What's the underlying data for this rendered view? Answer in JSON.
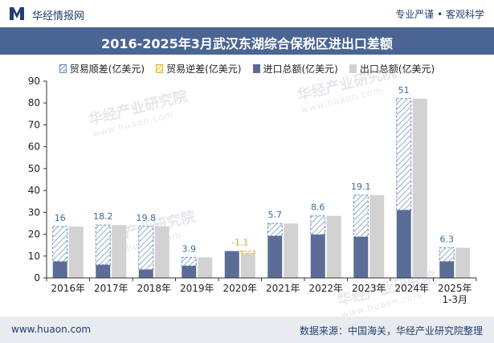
{
  "header": {
    "brand": "华经情报网",
    "slogan": "专业严谨 • 客观科学"
  },
  "footer": {
    "website": "www.huaon.com",
    "source": "数据来源：中国海关，华经产业研究院整理"
  },
  "watermark": {
    "line1": "华经产业研究院",
    "line2": "www.huaon.com"
  },
  "colors": {
    "header_bg": "#4a6494",
    "import": "#5b6d96",
    "export": "#d2d2d2",
    "surplus_hatch": "#9ab3cf",
    "surplus_label": "#3b6b9a",
    "deficit_hatch": "#f0c34a",
    "deficit_label": "#d9a520"
  },
  "chart_data": {
    "type": "bar",
    "title": "2016-2025年3月武汉东湖综合保税区进出口差额",
    "legend": [
      "贸易顺差(亿美元)",
      "贸易逆差(亿美元)",
      "进口总额(亿美元)",
      "出口总额(亿美元)"
    ],
    "categories": [
      "2016年",
      "2017年",
      "2018年",
      "2019年",
      "2020年",
      "2021年",
      "2022年",
      "2023年",
      "2024年",
      "2025年 1-3月"
    ],
    "series": [
      {
        "name": "进口总额(亿美元)",
        "values": [
          7.5,
          6,
          3.8,
          5.5,
          12.3,
          19.2,
          19.8,
          18.8,
          31,
          7.5
        ]
      },
      {
        "name": "出口总额(亿美元)",
        "values": [
          23.5,
          24.2,
          23.6,
          9.4,
          11.2,
          24.9,
          28.4,
          37.9,
          82,
          13.8
        ]
      },
      {
        "name": "贸易差额(亿美元)",
        "values": [
          16,
          18.2,
          19.8,
          3.9,
          -1.1,
          5.7,
          8.6,
          19.1,
          51,
          6.3
        ]
      }
    ],
    "balance_labels": [
      "16",
      "18.2",
      "19.8",
      "3.9",
      "-1.1",
      "5.7",
      "8.6",
      "19.1",
      "51",
      "6.3"
    ],
    "ylim": [
      0,
      90
    ],
    "yticks": [
      0,
      10,
      20,
      30,
      40,
      50,
      60,
      70,
      80,
      90
    ],
    "xlabel": "",
    "ylabel": ""
  }
}
